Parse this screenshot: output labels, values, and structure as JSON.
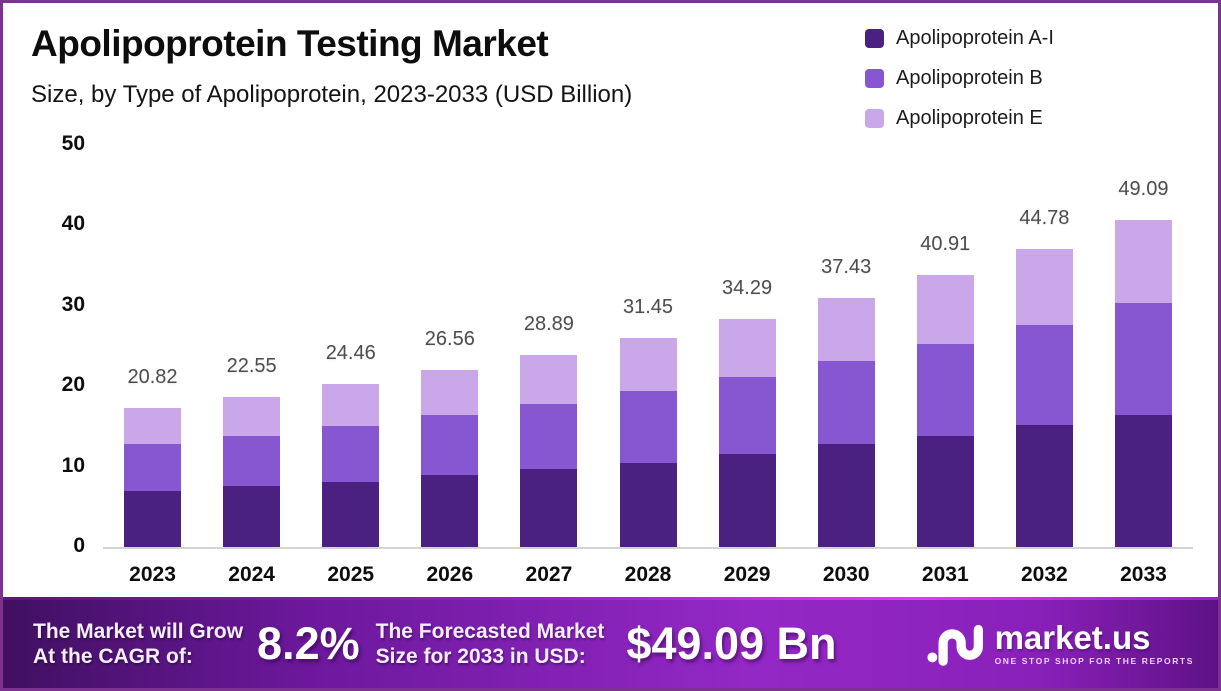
{
  "header": {
    "title": "Apolipoprotein Testing Market",
    "subtitle": "Size, by Type of Apolipoprotein, 2023-2033 (USD Billion)"
  },
  "chart_data": {
    "type": "bar",
    "stacked": true,
    "title": "Apolipoprotein Testing Market",
    "subtitle": "Size, by Type of Apolipoprotein, 2023-2033 (USD Billion)",
    "categories": [
      "2023",
      "2024",
      "2025",
      "2026",
      "2027",
      "2028",
      "2029",
      "2030",
      "2031",
      "2032",
      "2033"
    ],
    "series": [
      {
        "name": "Apolipoprotein A-I",
        "color": "#4A2080",
        "values": [
          8.38,
          9.12,
          9.83,
          10.88,
          11.73,
          12.68,
          14.02,
          15.43,
          16.63,
          18.32,
          19.89
        ]
      },
      {
        "name": "Apolipoprotein B",
        "color": "#8757D1",
        "values": [
          7.11,
          7.6,
          8.32,
          8.91,
          9.74,
          10.82,
          11.57,
          12.46,
          13.86,
          15.06,
          16.77
        ]
      },
      {
        "name": "Apolipoprotein E",
        "color": "#C9A7E8",
        "values": [
          5.33,
          5.83,
          6.31,
          6.77,
          7.42,
          7.95,
          8.7,
          9.54,
          10.42,
          11.4,
          12.43
        ]
      }
    ],
    "totals": [
      20.82,
      22.55,
      24.46,
      26.56,
      28.89,
      31.45,
      34.29,
      37.43,
      40.91,
      44.78,
      49.09
    ],
    "xlabel": "",
    "ylabel": "",
    "ylim": [
      0,
      50
    ],
    "yticks": [
      0,
      10,
      20,
      30,
      40,
      50
    ],
    "grid": false,
    "legend_position": "top-right"
  },
  "footer": {
    "cagr_label_line1": "The Market will Grow",
    "cagr_label_line2": "At the CAGR of:",
    "cagr_value": "8.2%",
    "forecast_label_line1": "The Forecasted Market",
    "forecast_label_line2": "Size for 2033 in USD:",
    "forecast_value": "$49.09 Bn",
    "brand_name": "market.us",
    "brand_tagline": "ONE STOP SHOP FOR THE REPORTS"
  },
  "colors": {
    "page_border": "#7D3191",
    "axis_line": "#D4D4D4",
    "total_label": "#4D4D4D",
    "banner_gradient_start": "#401061",
    "banner_gradient_mid": "#9428C6",
    "banner_gradient_end": "#5E1286"
  }
}
